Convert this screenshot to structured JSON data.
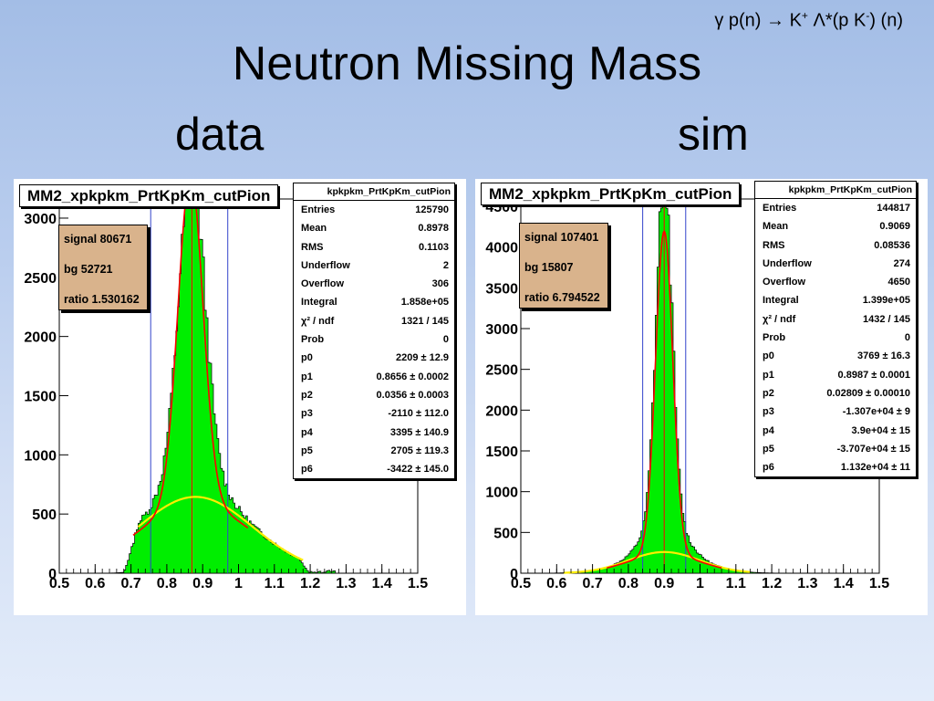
{
  "reaction": {
    "gamma": "γ",
    "text1": " p(n) → K",
    "sup1": "+",
    "text2": " Λ*(p K",
    "sup2": "-",
    "text3": ") (n)"
  },
  "title": "Neutron Missing Mass",
  "label_data": "data",
  "label_sim": "sim",
  "colors": {
    "fill": "#00ee00",
    "outline": "#000000",
    "fit": "#ff0000",
    "bg": "#ffee00",
    "lines": "#3344cc",
    "center": "#ff0000",
    "stats_box_bg": "#d9b38c"
  },
  "chart_data": [
    {
      "type": "bar",
      "title": "MM2_xpkpkm_PrtKpKm_cutPion",
      "xlim": [
        0.5,
        1.5
      ],
      "ylim": [
        0,
        3100
      ],
      "xticks": [
        "0.5",
        "0.6",
        "0.7",
        "0.8",
        "0.9",
        "1",
        "1.1",
        "1.2",
        "1.3",
        "1.4",
        "1.5"
      ],
      "yticks": [
        {
          "v": 0,
          "label": "0"
        },
        {
          "v": 500,
          "label": "500"
        },
        {
          "v": 1000,
          "label": "1000"
        },
        {
          "v": 1500,
          "label": "1500"
        },
        {
          "v": 2000,
          "label": "2000"
        },
        {
          "v": 2500,
          "label": "2500"
        },
        {
          "v": 3000,
          "label": "3000"
        }
      ],
      "vlines": [
        0.755,
        0.87,
        0.97
      ],
      "histogram_peak": {
        "center": 0.87,
        "peak": 3100,
        "sigma": 0.036
      },
      "background_fit": {
        "peak": 645,
        "center": 0.88,
        "sigma": 0.16
      },
      "fit_peak": {
        "peak": 2780,
        "center": 0.866,
        "sigma": 0.035
      },
      "stats": {
        "name": "kpkpkm_PrtKpKm_cutPion",
        "rows": [
          {
            "k": "Entries",
            "v": "125790"
          },
          {
            "k": "Mean",
            "v": "0.8978"
          },
          {
            "k": "RMS",
            "v": "0.1103"
          },
          {
            "k": "Underflow",
            "v": "2"
          },
          {
            "k": "Overflow",
            "v": "306"
          },
          {
            "k": "Integral",
            "v": "1.858e+05"
          },
          {
            "k": "χ² / ndf",
            "v": "1321 / 145"
          },
          {
            "k": "Prob",
            "v": "0"
          },
          {
            "k": "p0",
            "v": "2209 ± 12.9"
          },
          {
            "k": "p1",
            "v": "0.8656 ± 0.0002"
          },
          {
            "k": "p2",
            "v": "0.0356 ± 0.0003"
          },
          {
            "k": "p3",
            "v": "-2110 ± 112.0"
          },
          {
            "k": "p4",
            "v": "3395 ± 140.9"
          },
          {
            "k": "p5",
            "v": "2705 ± 119.3"
          },
          {
            "k": "p6",
            "v": "-3422 ± 145.0"
          }
        ]
      },
      "fitbox": {
        "signal": "signal 80671",
        "bg": "bg 52721",
        "ratio": "ratio 1.530162"
      }
    },
    {
      "type": "bar",
      "title": "MM2_xpkpkm_PrtKpKm_cutPion",
      "xlim": [
        0.5,
        1.5
      ],
      "ylim": [
        0,
        4500
      ],
      "xticks": [
        "0.5",
        "0.6",
        "0.7",
        "0.8",
        "0.9",
        "1",
        "1.1",
        "1.2",
        "1.3",
        "1.4",
        "1.5"
      ],
      "yticks": [
        {
          "v": 0,
          "label": "0"
        },
        {
          "v": 500,
          "label": "500"
        },
        {
          "v": 1000,
          "label": "1000"
        },
        {
          "v": 1500,
          "label": "1500"
        },
        {
          "v": 2000,
          "label": "2000"
        },
        {
          "v": 2500,
          "label": "2500"
        },
        {
          "v": 3000,
          "label": "3000"
        },
        {
          "v": 3500,
          "label": "3500"
        },
        {
          "v": 4000,
          "label": "4000"
        },
        {
          "v": 4500,
          "label": "4500"
        }
      ],
      "vlines": [
        0.84,
        0.9,
        0.96
      ],
      "histogram_peak": {
        "center": 0.9,
        "peak": 4420,
        "sigma": 0.022
      },
      "background_fit": {
        "peak": 260,
        "center": 0.9,
        "sigma": 0.1
      },
      "fit_peak": {
        "peak": 3960,
        "center": 0.9,
        "sigma": 0.024
      },
      "stats": {
        "name": "kpkpkm_PrtKpKm_cutPion",
        "rows": [
          {
            "k": "Entries",
            "v": "144817"
          },
          {
            "k": "Mean",
            "v": "0.9069"
          },
          {
            "k": "RMS",
            "v": "0.08536"
          },
          {
            "k": "Underflow",
            "v": "274"
          },
          {
            "k": "Overflow",
            "v": "4650"
          },
          {
            "k": "Integral",
            "v": "1.399e+05"
          },
          {
            "k": "χ² / ndf",
            "v": "1432 / 145"
          },
          {
            "k": "Prob",
            "v": "0"
          },
          {
            "k": "p0",
            "v": "3769 ± 16.3"
          },
          {
            "k": "p1",
            "v": "0.8987 ± 0.0001"
          },
          {
            "k": "p2",
            "v": "0.02809 ± 0.00010"
          },
          {
            "k": "p3",
            "v": "-1.307e+04 ± 9"
          },
          {
            "k": "p4",
            "v": "3.9e+04 ± 15"
          },
          {
            "k": "p5",
            "v": "-3.707e+04 ± 15"
          },
          {
            "k": "p6",
            "v": "1.132e+04 ± 11"
          }
        ]
      },
      "fitbox": {
        "signal": "signal 107401",
        "bg": "bg 15807",
        "ratio": "ratio 6.794522"
      }
    }
  ]
}
